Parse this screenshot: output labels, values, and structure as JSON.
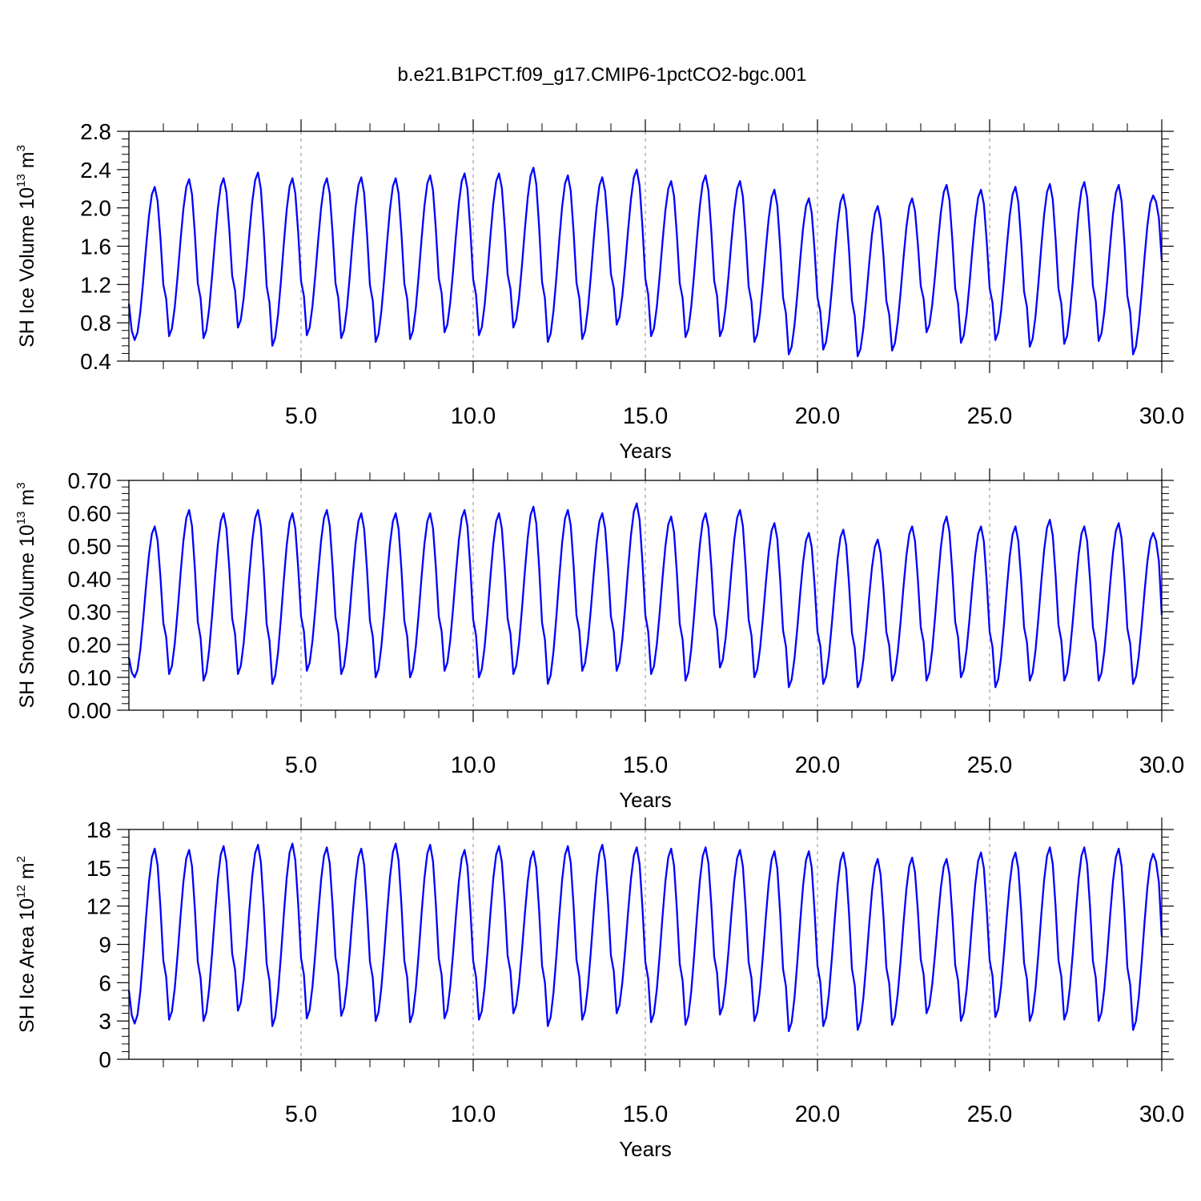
{
  "title": "b.e21.B1PCT.f09_g17.CMIP6-1pctCO2-bgc.001",
  "chart_data": [
    {
      "type": "line",
      "ylabel": {
        "prefix": "SH Ice Volume 10",
        "exp": "13",
        "unit": " m",
        "unit_exp": "3"
      },
      "xlabel": "Years",
      "xlim": [
        0.0,
        30.0
      ],
      "ylim": [
        0.4,
        2.8
      ],
      "xticks": [
        5,
        10,
        15,
        20,
        25,
        30
      ],
      "xtick_labels": [
        "5.0",
        "10.0",
        "15.0",
        "20.0",
        "25.0",
        "30.0"
      ],
      "yticks": [
        0.4,
        0.8,
        1.2,
        1.6,
        2.0,
        2.4,
        2.8
      ],
      "ytick_labels": [
        "0.4",
        "0.8",
        "1.2",
        "1.6",
        "2.0",
        "2.4",
        "2.8"
      ],
      "grid": "dashed vertical lines at 5-year intervals",
      "line_color": "#0000ff",
      "series": [
        {
          "first_month_value": 1.0,
          "annual_min": [
            0.62,
            0.66,
            0.64,
            0.75,
            0.56,
            0.67,
            0.64,
            0.6,
            0.63,
            0.7,
            0.67,
            0.75,
            0.6,
            0.63,
            0.78,
            0.66,
            0.65,
            0.66,
            0.6,
            0.47,
            0.52,
            0.45,
            0.51,
            0.7,
            0.59,
            0.62,
            0.55,
            0.58,
            0.61,
            0.47
          ],
          "annual_max": [
            2.22,
            2.3,
            2.31,
            2.37,
            2.31,
            2.31,
            2.32,
            2.31,
            2.34,
            2.36,
            2.36,
            2.42,
            2.34,
            2.32,
            2.4,
            2.28,
            2.34,
            2.28,
            2.19,
            2.1,
            2.14,
            2.02,
            2.1,
            2.24,
            2.19,
            2.22,
            2.25,
            2.27,
            2.24,
            2.13
          ],
          "last_value": 1.45
        }
      ]
    },
    {
      "type": "line",
      "ylabel": {
        "prefix": "SH Snow Volume 10",
        "exp": "13",
        "unit": " m",
        "unit_exp": "3"
      },
      "xlabel": "Years",
      "xlim": [
        0.0,
        30.0
      ],
      "ylim": [
        0.0,
        0.7
      ],
      "xticks": [
        5,
        10,
        15,
        20,
        25,
        30
      ],
      "xtick_labels": [
        "5.0",
        "10.0",
        "15.0",
        "20.0",
        "25.0",
        "30.0"
      ],
      "yticks": [
        0.0,
        0.1,
        0.2,
        0.3,
        0.4,
        0.5,
        0.6,
        0.7
      ],
      "ytick_labels": [
        "0.00",
        "0.10",
        "0.20",
        "0.30",
        "0.40",
        "0.50",
        "0.60",
        "0.70"
      ],
      "grid": "dashed vertical lines at 5-year intervals",
      "line_color": "#0000ff",
      "series": [
        {
          "first_month_value": 0.16,
          "annual_min": [
            0.1,
            0.11,
            0.09,
            0.11,
            0.08,
            0.12,
            0.11,
            0.1,
            0.1,
            0.12,
            0.1,
            0.11,
            0.08,
            0.12,
            0.12,
            0.11,
            0.09,
            0.13,
            0.1,
            0.07,
            0.08,
            0.07,
            0.09,
            0.09,
            0.1,
            0.07,
            0.09,
            0.09,
            0.09,
            0.08
          ],
          "annual_max": [
            0.56,
            0.61,
            0.6,
            0.61,
            0.6,
            0.61,
            0.6,
            0.6,
            0.6,
            0.61,
            0.6,
            0.62,
            0.61,
            0.6,
            0.63,
            0.59,
            0.6,
            0.61,
            0.57,
            0.54,
            0.55,
            0.52,
            0.56,
            0.59,
            0.56,
            0.56,
            0.58,
            0.56,
            0.57,
            0.54
          ],
          "last_value": 0.29
        }
      ]
    },
    {
      "type": "line",
      "ylabel": {
        "prefix": "SH Ice Area 10",
        "exp": "12",
        "unit": " m",
        "unit_exp": "2"
      },
      "xlabel": "Years",
      "xlim": [
        0.0,
        30.0
      ],
      "ylim": [
        0,
        18
      ],
      "xticks": [
        5,
        10,
        15,
        20,
        25,
        30
      ],
      "xtick_labels": [
        "5.0",
        "10.0",
        "15.0",
        "20.0",
        "25.0",
        "30.0"
      ],
      "yticks": [
        0,
        3,
        6,
        9,
        12,
        15,
        18
      ],
      "ytick_labels": [
        "0",
        "3",
        "6",
        "9",
        "12",
        "15",
        "18"
      ],
      "grid": "dashed vertical lines at 5-year intervals",
      "line_color": "#0000ff",
      "series": [
        {
          "first_month_value": 5.4,
          "annual_min": [
            2.8,
            3.1,
            3.0,
            3.8,
            2.6,
            3.2,
            3.4,
            3.0,
            2.9,
            3.2,
            3.1,
            3.6,
            2.6,
            3.1,
            3.6,
            2.9,
            2.7,
            3.5,
            3.0,
            2.2,
            2.6,
            2.3,
            2.7,
            3.6,
            3.0,
            3.3,
            3.0,
            3.1,
            3.0,
            2.3
          ],
          "annual_max": [
            16.5,
            16.4,
            16.7,
            16.8,
            16.9,
            16.6,
            16.5,
            16.9,
            16.8,
            16.4,
            16.7,
            16.3,
            16.7,
            16.8,
            16.6,
            16.5,
            16.6,
            16.4,
            16.3,
            16.3,
            16.2,
            15.7,
            15.8,
            15.7,
            16.2,
            16.2,
            16.6,
            16.6,
            16.5,
            16.1
          ],
          "last_value": 9.6
        }
      ]
    }
  ]
}
